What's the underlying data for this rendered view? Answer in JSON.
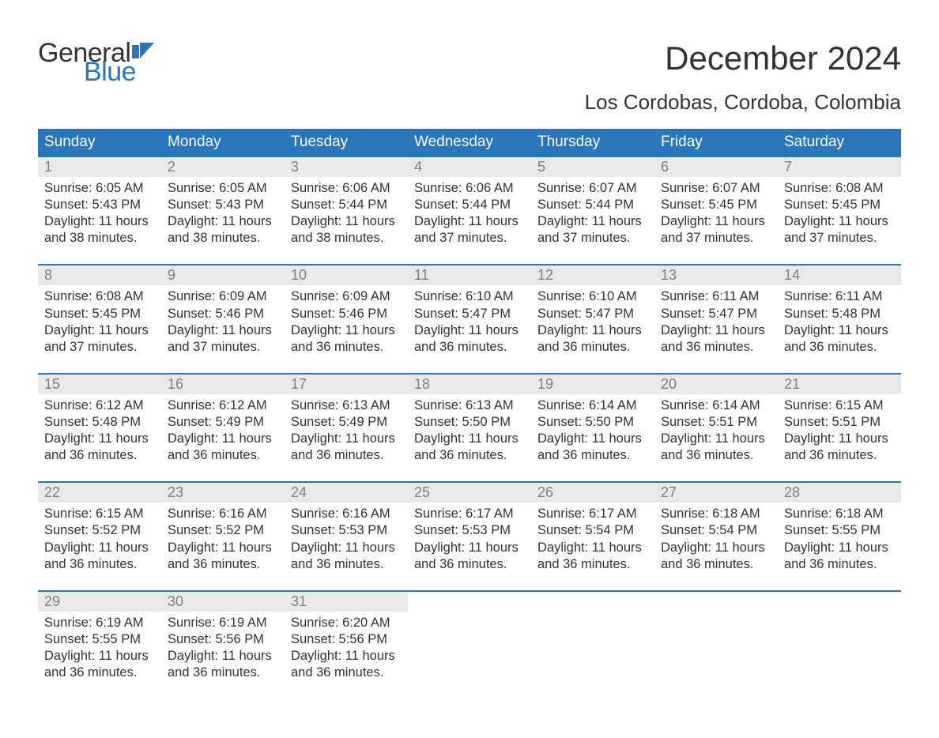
{
  "logo": {
    "word1": "General",
    "word2": "Blue"
  },
  "title": "December 2024",
  "subtitle": "Los Cordobas, Cordoba, Colombia",
  "colors": {
    "header_bg": "#2b76bb",
    "header_text": "#ffffff",
    "daynum_bg": "#e9e9e9",
    "daynum_text": "#808080",
    "body_text": "#333333",
    "border_top": "#2b76bb",
    "logo_blue": "#2b76bb",
    "page_bg": "#ffffff"
  },
  "typography": {
    "title_fontsize": 42,
    "subtitle_fontsize": 26,
    "dayhead_fontsize": 19,
    "daynum_fontsize": 18,
    "cell_fontsize": 16.5,
    "logo_fontsize": 34
  },
  "layout": {
    "columns": 7,
    "weeks": 5,
    "cell_lines": 4
  },
  "day_headers": [
    "Sunday",
    "Monday",
    "Tuesday",
    "Wednesday",
    "Thursday",
    "Friday",
    "Saturday"
  ],
  "weeks": [
    [
      {
        "num": "1",
        "sunrise": "Sunrise: 6:05 AM",
        "sunset": "Sunset: 5:43 PM",
        "d1": "Daylight: 11 hours",
        "d2": "and 38 minutes."
      },
      {
        "num": "2",
        "sunrise": "Sunrise: 6:05 AM",
        "sunset": "Sunset: 5:43 PM",
        "d1": "Daylight: 11 hours",
        "d2": "and 38 minutes."
      },
      {
        "num": "3",
        "sunrise": "Sunrise: 6:06 AM",
        "sunset": "Sunset: 5:44 PM",
        "d1": "Daylight: 11 hours",
        "d2": "and 38 minutes."
      },
      {
        "num": "4",
        "sunrise": "Sunrise: 6:06 AM",
        "sunset": "Sunset: 5:44 PM",
        "d1": "Daylight: 11 hours",
        "d2": "and 37 minutes."
      },
      {
        "num": "5",
        "sunrise": "Sunrise: 6:07 AM",
        "sunset": "Sunset: 5:44 PM",
        "d1": "Daylight: 11 hours",
        "d2": "and 37 minutes."
      },
      {
        "num": "6",
        "sunrise": "Sunrise: 6:07 AM",
        "sunset": "Sunset: 5:45 PM",
        "d1": "Daylight: 11 hours",
        "d2": "and 37 minutes."
      },
      {
        "num": "7",
        "sunrise": "Sunrise: 6:08 AM",
        "sunset": "Sunset: 5:45 PM",
        "d1": "Daylight: 11 hours",
        "d2": "and 37 minutes."
      }
    ],
    [
      {
        "num": "8",
        "sunrise": "Sunrise: 6:08 AM",
        "sunset": "Sunset: 5:45 PM",
        "d1": "Daylight: 11 hours",
        "d2": "and 37 minutes."
      },
      {
        "num": "9",
        "sunrise": "Sunrise: 6:09 AM",
        "sunset": "Sunset: 5:46 PM",
        "d1": "Daylight: 11 hours",
        "d2": "and 37 minutes."
      },
      {
        "num": "10",
        "sunrise": "Sunrise: 6:09 AM",
        "sunset": "Sunset: 5:46 PM",
        "d1": "Daylight: 11 hours",
        "d2": "and 36 minutes."
      },
      {
        "num": "11",
        "sunrise": "Sunrise: 6:10 AM",
        "sunset": "Sunset: 5:47 PM",
        "d1": "Daylight: 11 hours",
        "d2": "and 36 minutes."
      },
      {
        "num": "12",
        "sunrise": "Sunrise: 6:10 AM",
        "sunset": "Sunset: 5:47 PM",
        "d1": "Daylight: 11 hours",
        "d2": "and 36 minutes."
      },
      {
        "num": "13",
        "sunrise": "Sunrise: 6:11 AM",
        "sunset": "Sunset: 5:47 PM",
        "d1": "Daylight: 11 hours",
        "d2": "and 36 minutes."
      },
      {
        "num": "14",
        "sunrise": "Sunrise: 6:11 AM",
        "sunset": "Sunset: 5:48 PM",
        "d1": "Daylight: 11 hours",
        "d2": "and 36 minutes."
      }
    ],
    [
      {
        "num": "15",
        "sunrise": "Sunrise: 6:12 AM",
        "sunset": "Sunset: 5:48 PM",
        "d1": "Daylight: 11 hours",
        "d2": "and 36 minutes."
      },
      {
        "num": "16",
        "sunrise": "Sunrise: 6:12 AM",
        "sunset": "Sunset: 5:49 PM",
        "d1": "Daylight: 11 hours",
        "d2": "and 36 minutes."
      },
      {
        "num": "17",
        "sunrise": "Sunrise: 6:13 AM",
        "sunset": "Sunset: 5:49 PM",
        "d1": "Daylight: 11 hours",
        "d2": "and 36 minutes."
      },
      {
        "num": "18",
        "sunrise": "Sunrise: 6:13 AM",
        "sunset": "Sunset: 5:50 PM",
        "d1": "Daylight: 11 hours",
        "d2": "and 36 minutes."
      },
      {
        "num": "19",
        "sunrise": "Sunrise: 6:14 AM",
        "sunset": "Sunset: 5:50 PM",
        "d1": "Daylight: 11 hours",
        "d2": "and 36 minutes."
      },
      {
        "num": "20",
        "sunrise": "Sunrise: 6:14 AM",
        "sunset": "Sunset: 5:51 PM",
        "d1": "Daylight: 11 hours",
        "d2": "and 36 minutes."
      },
      {
        "num": "21",
        "sunrise": "Sunrise: 6:15 AM",
        "sunset": "Sunset: 5:51 PM",
        "d1": "Daylight: 11 hours",
        "d2": "and 36 minutes."
      }
    ],
    [
      {
        "num": "22",
        "sunrise": "Sunrise: 6:15 AM",
        "sunset": "Sunset: 5:52 PM",
        "d1": "Daylight: 11 hours",
        "d2": "and 36 minutes."
      },
      {
        "num": "23",
        "sunrise": "Sunrise: 6:16 AM",
        "sunset": "Sunset: 5:52 PM",
        "d1": "Daylight: 11 hours",
        "d2": "and 36 minutes."
      },
      {
        "num": "24",
        "sunrise": "Sunrise: 6:16 AM",
        "sunset": "Sunset: 5:53 PM",
        "d1": "Daylight: 11 hours",
        "d2": "and 36 minutes."
      },
      {
        "num": "25",
        "sunrise": "Sunrise: 6:17 AM",
        "sunset": "Sunset: 5:53 PM",
        "d1": "Daylight: 11 hours",
        "d2": "and 36 minutes."
      },
      {
        "num": "26",
        "sunrise": "Sunrise: 6:17 AM",
        "sunset": "Sunset: 5:54 PM",
        "d1": "Daylight: 11 hours",
        "d2": "and 36 minutes."
      },
      {
        "num": "27",
        "sunrise": "Sunrise: 6:18 AM",
        "sunset": "Sunset: 5:54 PM",
        "d1": "Daylight: 11 hours",
        "d2": "and 36 minutes."
      },
      {
        "num": "28",
        "sunrise": "Sunrise: 6:18 AM",
        "sunset": "Sunset: 5:55 PM",
        "d1": "Daylight: 11 hours",
        "d2": "and 36 minutes."
      }
    ],
    [
      {
        "num": "29",
        "sunrise": "Sunrise: 6:19 AM",
        "sunset": "Sunset: 5:55 PM",
        "d1": "Daylight: 11 hours",
        "d2": "and 36 minutes."
      },
      {
        "num": "30",
        "sunrise": "Sunrise: 6:19 AM",
        "sunset": "Sunset: 5:56 PM",
        "d1": "Daylight: 11 hours",
        "d2": "and 36 minutes."
      },
      {
        "num": "31",
        "sunrise": "Sunrise: 6:20 AM",
        "sunset": "Sunset: 5:56 PM",
        "d1": "Daylight: 11 hours",
        "d2": "and 36 minutes."
      },
      null,
      null,
      null,
      null
    ]
  ]
}
